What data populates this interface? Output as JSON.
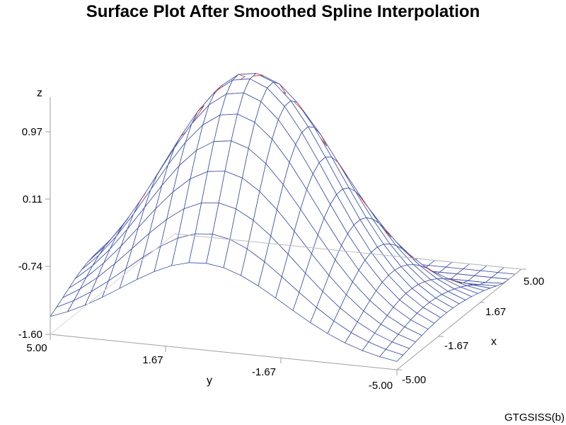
{
  "chart_data": {
    "type": "surface",
    "title": "Surface Plot After Smoothed Spline Interpolation",
    "footnote": "GTGSISS(b)",
    "axes": {
      "x": {
        "label": "x",
        "range": [
          -5.0,
          5.0
        ],
        "ticks": [
          "-5.00",
          "-1.67",
          "1.67",
          "5.00"
        ]
      },
      "y": {
        "label": "y",
        "range": [
          -5.0,
          5.0
        ],
        "ticks": [
          "5.00",
          "1.67",
          "-1.67",
          "-5.00"
        ]
      },
      "z": {
        "label": "z",
        "range": [
          -1.6,
          1.83
        ],
        "ticks": [
          "-1.60",
          "-0.74",
          "0.11",
          "0.97"
        ]
      }
    },
    "grid": {
      "x_count": 21,
      "y_count": 21,
      "x_range": [
        -5,
        5
      ],
      "y_range": [
        -5,
        5
      ]
    },
    "surface": "smoothed spline interpolation of a single broad peak (max ≈ 1.8) falling to about -1.6 at the corners",
    "colors": {
      "mesh_top": "#3b4fa8",
      "mesh_under": "#b0303a",
      "axis": "#a0a0a0"
    }
  }
}
